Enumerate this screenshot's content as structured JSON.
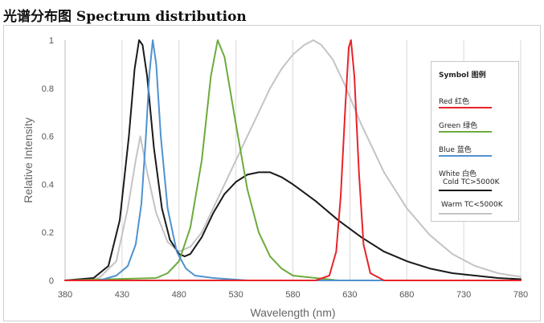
{
  "title": "光谱分布图 Spectrum distribution",
  "chart_data": {
    "type": "line",
    "xlabel": "Wavelength (nm)",
    "ylabel": "Relative Intensity",
    "xlim": [
      380,
      780
    ],
    "ylim": [
      0,
      1
    ],
    "xticks": [
      "380",
      "430",
      "480",
      "530",
      "580",
      "630",
      "680",
      "730",
      "780"
    ],
    "yticks": [
      "0",
      "0.2",
      "0.4",
      "0.6",
      "0.8",
      "1"
    ],
    "grid": "vertical",
    "legend": {
      "position": "top-right",
      "header": "Symbol 图例",
      "entries": [
        {
          "label": "Red 红色",
          "color": "#e8232a"
        },
        {
          "label": "Green 绿色",
          "color": "#6cab3c"
        },
        {
          "label": "Blue 蓝色",
          "color": "#4f92cf"
        },
        {
          "label": "White 白色",
          "color": ""
        },
        {
          "label": "Cold  TC>5000K",
          "color": "#1a1a1a"
        },
        {
          "label": "Warm TC<5000K",
          "color": "#c4c4c4"
        }
      ]
    },
    "series": [
      {
        "name": "Red 红色",
        "color": "#e8232a",
        "x": [
          380,
          600,
          612,
          618,
          622,
          626,
          629,
          631,
          634,
          638,
          642,
          648,
          660,
          780
        ],
        "y": [
          0,
          0,
          0.02,
          0.12,
          0.35,
          0.72,
          0.97,
          1.0,
          0.85,
          0.45,
          0.15,
          0.03,
          0,
          0
        ]
      },
      {
        "name": "Green 绿色",
        "color": "#6cab3c",
        "x": [
          380,
          460,
          470,
          480,
          490,
          500,
          508,
          514,
          520,
          530,
          540,
          550,
          560,
          570,
          580,
          600,
          620,
          780
        ],
        "y": [
          0,
          0.01,
          0.03,
          0.08,
          0.22,
          0.5,
          0.85,
          1.0,
          0.93,
          0.65,
          0.38,
          0.2,
          0.1,
          0.05,
          0.02,
          0.01,
          0,
          0
        ]
      },
      {
        "name": "Blue 蓝色",
        "color": "#4f92cf",
        "x": [
          380,
          410,
          425,
          435,
          442,
          447,
          451,
          454,
          457,
          460,
          464,
          470,
          478,
          486,
          494,
          510,
          540,
          580,
          780
        ],
        "y": [
          0,
          0,
          0.02,
          0.06,
          0.15,
          0.32,
          0.6,
          0.86,
          1.0,
          0.9,
          0.6,
          0.3,
          0.12,
          0.05,
          0.02,
          0.01,
          0,
          0,
          0
        ],
        "marker": "none"
      },
      {
        "name": "Cold  TC>5000K",
        "color": "#1a1a1a",
        "x": [
          380,
          405,
          418,
          428,
          436,
          441,
          445,
          448,
          452,
          458,
          465,
          472,
          480,
          485,
          490,
          500,
          510,
          520,
          530,
          540,
          550,
          560,
          570,
          580,
          600,
          620,
          640,
          660,
          680,
          700,
          720,
          740,
          760,
          780
        ],
        "y": [
          0,
          0.01,
          0.06,
          0.25,
          0.6,
          0.88,
          1.0,
          0.98,
          0.85,
          0.55,
          0.3,
          0.17,
          0.11,
          0.1,
          0.11,
          0.18,
          0.28,
          0.36,
          0.41,
          0.44,
          0.45,
          0.45,
          0.43,
          0.4,
          0.33,
          0.25,
          0.18,
          0.12,
          0.08,
          0.05,
          0.03,
          0.02,
          0.01,
          0.005
        ]
      },
      {
        "name": "Warm TC<5000K",
        "color": "#c4c4c4",
        "x": [
          380,
          410,
          425,
          435,
          442,
          446,
          452,
          460,
          470,
          480,
          490,
          500,
          510,
          520,
          530,
          540,
          550,
          560,
          570,
          580,
          590,
          598,
          605,
          615,
          625,
          640,
          660,
          680,
          700,
          720,
          740,
          760,
          780
        ],
        "y": [
          0,
          0.01,
          0.08,
          0.3,
          0.5,
          0.6,
          0.45,
          0.28,
          0.16,
          0.12,
          0.14,
          0.2,
          0.3,
          0.4,
          0.5,
          0.6,
          0.7,
          0.8,
          0.88,
          0.94,
          0.98,
          1.0,
          0.98,
          0.92,
          0.82,
          0.65,
          0.45,
          0.3,
          0.19,
          0.11,
          0.06,
          0.03,
          0.015
        ]
      }
    ]
  }
}
